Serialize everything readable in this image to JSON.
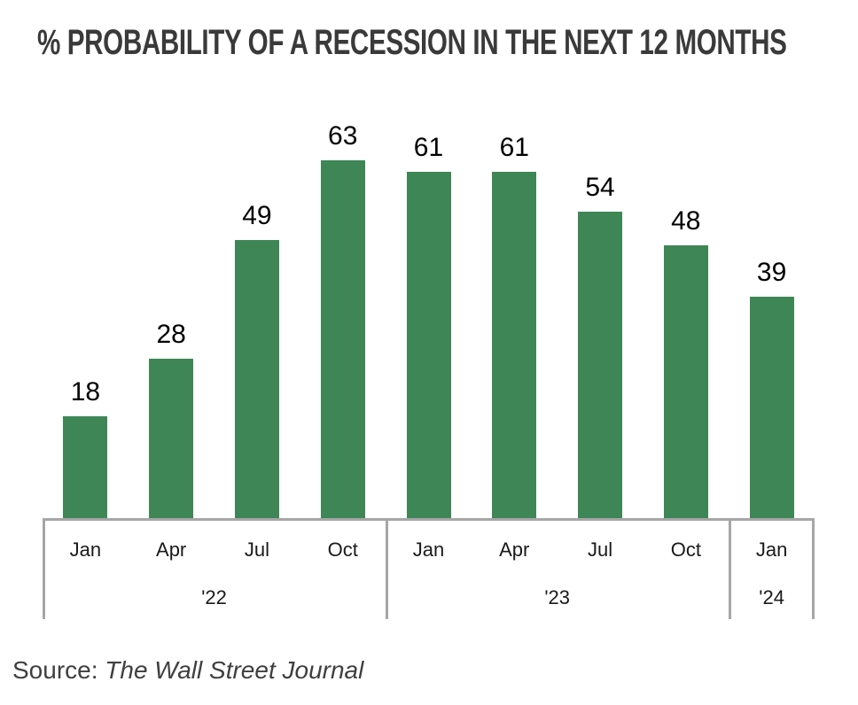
{
  "title": "% PROBABILITY OF A RECESSION IN THE NEXT 12 MONTHS",
  "source": {
    "label": "Source: ",
    "publication": "The Wall Street Journal"
  },
  "colors": {
    "bar": "#3f8656",
    "axis_line": "#a6a6a6",
    "title_text": "#3a3a3a",
    "value_label": "#000000",
    "tick_label": "#1a1a1a",
    "source_text": "#3f3f3f",
    "background": "#ffffff"
  },
  "chart_data": {
    "type": "bar",
    "title": "% PROBABILITY OF A RECESSION IN THE NEXT 12 MONTHS",
    "categories": [
      "Jan",
      "Apr",
      "Jul",
      "Oct",
      "Jan",
      "Apr",
      "Jul",
      "Oct",
      "Jan"
    ],
    "values": [
      18,
      28,
      49,
      63,
      61,
      61,
      54,
      48,
      39
    ],
    "year_groups": [
      {
        "label": "'22",
        "span": 4
      },
      {
        "label": "'23",
        "span": 4
      },
      {
        "label": "'24",
        "span": 1
      }
    ],
    "data_labels": [
      18,
      28,
      49,
      63,
      61,
      61,
      54,
      48,
      39
    ],
    "xlabel": "",
    "ylabel": "",
    "ylim": [
      0,
      70
    ],
    "grid": false,
    "legend": false,
    "bar_color": "#3f8656",
    "annotation": "Source: The Wall Street Journal"
  }
}
